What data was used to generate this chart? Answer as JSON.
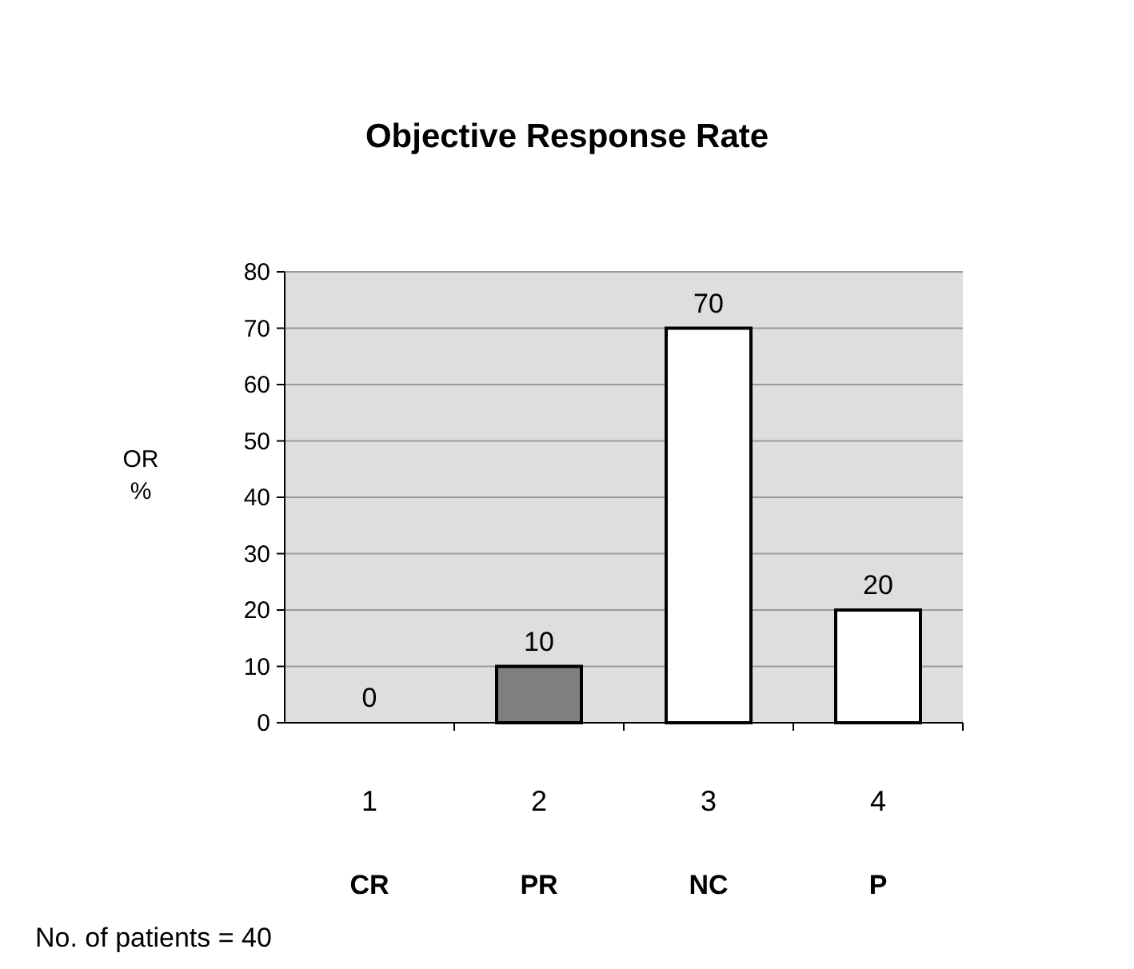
{
  "chart_data": {
    "type": "bar",
    "title": "Objective Response Rate",
    "ylabel": "OR\n%",
    "categories": [
      "1\nCR",
      "2\nPR",
      "3\nNC",
      "4\nP"
    ],
    "values": [
      0,
      10,
      70,
      20
    ],
    "colors": [
      "#ffffff",
      "#7f7f7f",
      "#ffffff",
      "#ffffff"
    ],
    "ylim": [
      0,
      80
    ],
    "yticks": [
      0,
      10,
      20,
      30,
      40,
      50,
      60,
      70,
      80
    ],
    "grid": "y",
    "data_labels": true,
    "annotations": [
      "No. of patients = 40"
    ]
  }
}
